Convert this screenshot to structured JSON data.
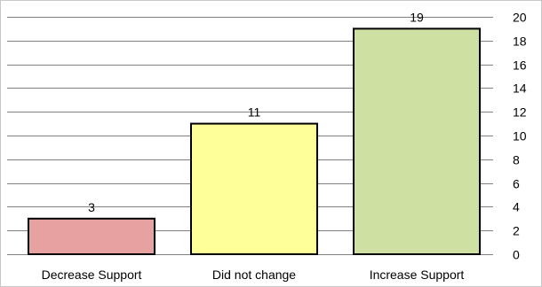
{
  "chart_data": {
    "type": "bar",
    "categories": [
      "Decrease Support",
      "Did not change",
      "Increase Support"
    ],
    "values": [
      3,
      11,
      19
    ],
    "data_labels": [
      "3",
      "11",
      "19"
    ],
    "ylim": [
      0,
      20
    ],
    "yticks": [
      "0",
      "2",
      "4",
      "6",
      "8",
      "10",
      "12",
      "14",
      "16",
      "18",
      "20"
    ],
    "y_axis_side": "right",
    "grid": true,
    "legend": "none",
    "bar_colors": [
      "#E8A1A1",
      "#FFFF99",
      "#CFE0A3"
    ],
    "bar_edge_color": "#000000",
    "grid_color": "#808080"
  }
}
